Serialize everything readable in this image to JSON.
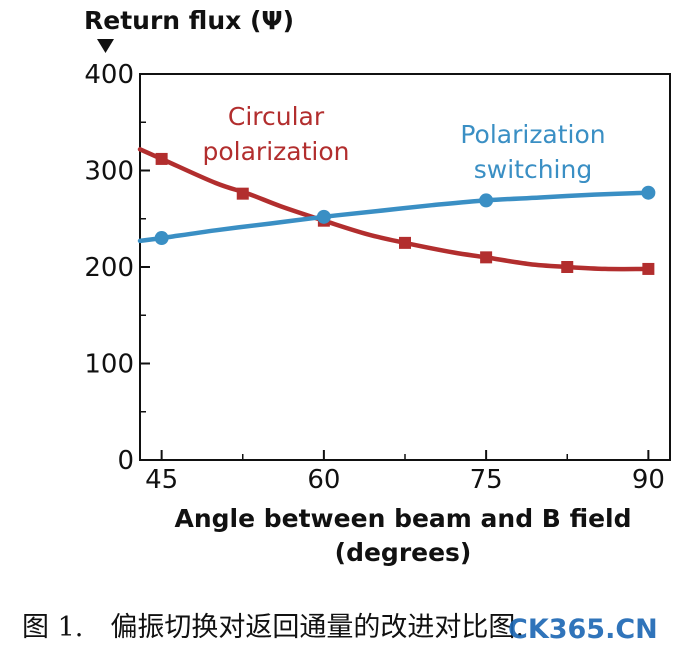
{
  "chart_data": {
    "type": "line",
    "ylabel": "Return flux (Ψ)",
    "xlabel_line1": "Angle between beam and B field",
    "xlabel_line2": "(degrees)",
    "xlim": [
      43,
      92
    ],
    "ylim": [
      0,
      400
    ],
    "xticks": [
      45,
      60,
      75,
      90
    ],
    "yticks": [
      0,
      100,
      200,
      300,
      400
    ],
    "series": [
      {
        "name": "Circular polarization",
        "name_lines": [
          "Circular",
          "polarization"
        ],
        "color": "#b22e2e",
        "marker": "square",
        "line": [
          [
            43,
            322
          ],
          [
            45,
            312
          ],
          [
            50,
            287
          ],
          [
            53,
            276
          ],
          [
            56,
            263
          ],
          [
            60,
            248
          ],
          [
            64,
            234
          ],
          [
            67.5,
            225
          ],
          [
            72,
            215
          ],
          [
            75,
            210
          ],
          [
            79,
            203
          ],
          [
            82.5,
            200
          ],
          [
            86,
            198
          ],
          [
            90,
            198
          ]
        ],
        "x": [
          45,
          52.5,
          60,
          67.5,
          75,
          82.5,
          90
        ],
        "values": [
          312,
          276,
          248,
          225,
          210,
          200,
          198
        ]
      },
      {
        "name": "Polarization switching",
        "name_lines": [
          "Polarization",
          "switching"
        ],
        "color": "#3a8fc4",
        "marker": "circle",
        "line": [
          [
            43,
            227
          ],
          [
            45,
            230
          ],
          [
            50,
            238
          ],
          [
            55,
            245
          ],
          [
            60,
            252
          ],
          [
            65,
            258
          ],
          [
            70,
            264
          ],
          [
            75,
            269
          ],
          [
            80,
            272
          ],
          [
            85,
            275
          ],
          [
            90,
            277
          ]
        ],
        "x": [
          45,
          60,
          75,
          90
        ],
        "values": [
          230,
          252,
          269,
          277
        ]
      }
    ]
  },
  "caption": "图 1.　偏振切换对返回通量的改进对比图.",
  "watermark": "CK365.CN"
}
